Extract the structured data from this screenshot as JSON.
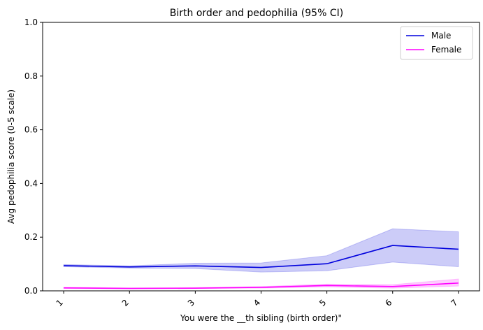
{
  "chart_data": {
    "type": "line",
    "title": "Birth order and pedophilia (95% CI)",
    "xlabel": "You were the __th sibling (birth order)\"",
    "ylabel": "Avg pedophilia score (0-5 scale)",
    "x": [
      1,
      2,
      3,
      4,
      5,
      6,
      7
    ],
    "x_tick_labels": [
      "1",
      "2",
      "3",
      "4",
      "5",
      "6",
      "7"
    ],
    "y_ticks": [
      "0.0",
      "0.2",
      "0.4",
      "0.6",
      "0.8",
      "1.0"
    ],
    "ylim": [
      0,
      1
    ],
    "grid": false,
    "legend_position": "top-right",
    "series": [
      {
        "name": "Male",
        "color": "#0000dd",
        "values": [
          0.094,
          0.089,
          0.093,
          0.087,
          0.101,
          0.169,
          0.155
        ],
        "ci_lower": [
          0.09,
          0.085,
          0.083,
          0.07,
          0.075,
          0.107,
          0.09
        ],
        "ci_upper": [
          0.098,
          0.093,
          0.103,
          0.104,
          0.131,
          0.231,
          0.22
        ]
      },
      {
        "name": "Female",
        "color": "#ff00ff",
        "values": [
          0.011,
          0.009,
          0.01,
          0.013,
          0.02,
          0.016,
          0.029
        ],
        "ci_lower": [
          0.009,
          0.008,
          0.009,
          0.01,
          0.015,
          0.01,
          0.018
        ],
        "ci_upper": [
          0.013,
          0.011,
          0.012,
          0.016,
          0.025,
          0.023,
          0.044
        ]
      }
    ]
  }
}
